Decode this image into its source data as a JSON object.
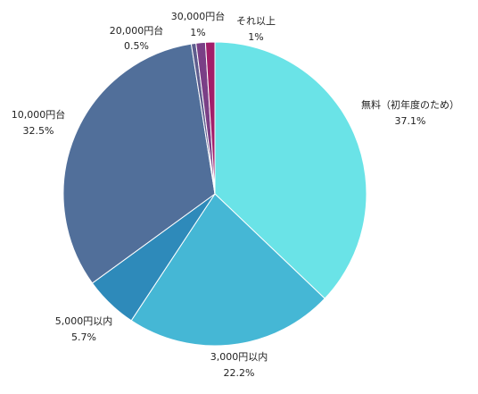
{
  "chart_data": {
    "type": "pie",
    "title": "",
    "start_angle_deg": 0,
    "direction": "clockwise",
    "slices": [
      {
        "label": "無料（初年度のため）",
        "value": 37.1,
        "pct_label": "37.1%",
        "color": "#6AE3E7"
      },
      {
        "label": "3,000円以内",
        "value": 22.2,
        "pct_label": "22.2%",
        "color": "#45B7D5"
      },
      {
        "label": "5,000円以内",
        "value": 5.7,
        "pct_label": "5.7%",
        "color": "#2E8ABA"
      },
      {
        "label": "10,000円台",
        "value": 32.5,
        "pct_label": "32.5%",
        "color": "#516F9A"
      },
      {
        "label": "20,000円台",
        "value": 0.5,
        "pct_label": "0.5%",
        "color": "#5E5D8E"
      },
      {
        "label": "30,000円台",
        "value": 1,
        "pct_label": "1%",
        "color": "#7A3F86"
      },
      {
        "label": "それ以上",
        "value": 1,
        "pct_label": "1%",
        "color": "#A21E6A"
      }
    ]
  }
}
